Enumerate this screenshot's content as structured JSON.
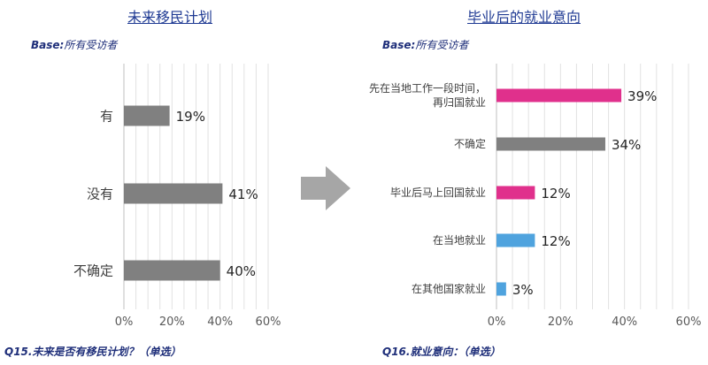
{
  "left": {
    "title": "未来移民计划",
    "base_label": "Base:",
    "base_text": "所有受访者",
    "question": "Q15.未来是否有移民计划？（单选）"
  },
  "right": {
    "title": "毕业后的就业意向",
    "base_label": "Base:",
    "base_text": "所有受访者",
    "question": "Q16.就业意向：（单选）"
  },
  "colors": {
    "gray": "#808080",
    "pink": "#e0308c",
    "blue": "#4fa3de",
    "title": "#1f3a93"
  },
  "chart_data": [
    {
      "type": "bar",
      "orientation": "horizontal",
      "title": "未来移民计划",
      "categories": [
        "有",
        "没有",
        "不确定"
      ],
      "values": [
        19,
        41,
        40
      ],
      "value_labels": [
        "19%",
        "41%",
        "40%"
      ],
      "bar_colors": [
        "#808080",
        "#808080",
        "#808080"
      ],
      "xlim": [
        0,
        60
      ],
      "xticks": [
        "0%",
        "20%",
        "40%",
        "60%"
      ],
      "grid": true
    },
    {
      "type": "bar",
      "orientation": "horizontal",
      "title": "毕业后的就业意向",
      "categories": [
        [
          "先在当地工作一段时间，",
          "再归国就业"
        ],
        [
          "不确定"
        ],
        [
          "毕业后马上回国就业"
        ],
        [
          "在当地就业"
        ],
        [
          "在其他国家就业"
        ]
      ],
      "values": [
        39,
        34,
        12,
        12,
        3
      ],
      "value_labels": [
        "39%",
        "34%",
        "12%",
        "12%",
        "3%"
      ],
      "bar_colors": [
        "#e0308c",
        "#808080",
        "#e0308c",
        "#4fa3de",
        "#4fa3de"
      ],
      "xlim": [
        0,
        60
      ],
      "xticks": [
        "0%",
        "20%",
        "40%",
        "60%"
      ],
      "grid": true
    }
  ]
}
